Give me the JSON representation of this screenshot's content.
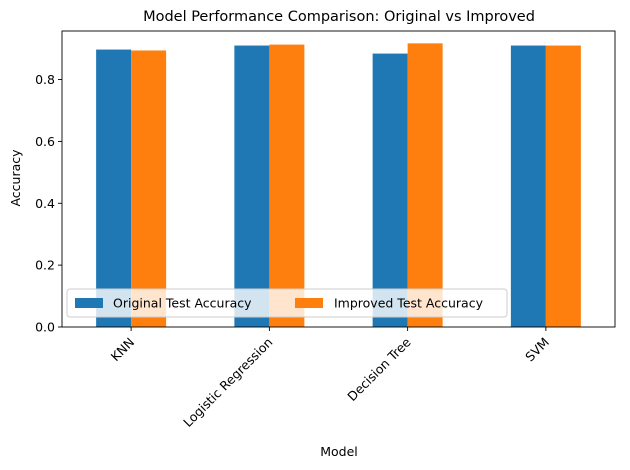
{
  "chart_data": {
    "type": "bar",
    "title": "Model Performance Comparison: Original vs Improved",
    "xlabel": "Model",
    "ylabel": "Accuracy",
    "categories": [
      "KNN",
      "Logistic Regression",
      "Decision Tree",
      "SVM"
    ],
    "series": [
      {
        "name": "Original Test Accuracy",
        "color": "#1f77b4",
        "values": [
          0.897,
          0.91,
          0.884,
          0.91
        ]
      },
      {
        "name": "Improved Test Accuracy",
        "color": "#ff7f0e",
        "values": [
          0.894,
          0.913,
          0.917,
          0.91
        ]
      }
    ],
    "ylim": [
      0,
      0.957
    ],
    "yticks": [
      "0.0",
      "0.2",
      "0.4",
      "0.6",
      "0.8"
    ],
    "grid": false,
    "legend_position": "lower-left"
  }
}
